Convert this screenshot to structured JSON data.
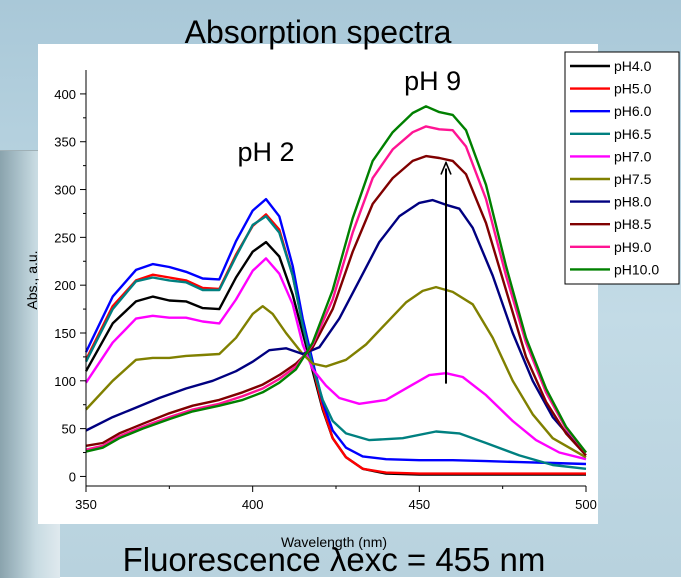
{
  "chart_data": {
    "type": "line",
    "title": "Absorption spectra",
    "xlabel": "Wavelength (nm)",
    "ylabel": "Abs., a.u.",
    "xlim": [
      350,
      500
    ],
    "ylim": [
      -10,
      425
    ],
    "xticks": [
      "350",
      "400",
      "450",
      "500"
    ],
    "yticks": [
      "0",
      "50",
      "100",
      "150",
      "200",
      "250",
      "300",
      "350",
      "400"
    ],
    "annotations": [
      {
        "text": "pH 2",
        "at": [
          404,
          330
        ]
      },
      {
        "text": "pH 9",
        "at": [
          454,
          404
        ]
      }
    ],
    "arrow": {
      "from": [
        458,
        97
      ],
      "to": [
        458,
        322
      ]
    },
    "footer": "Fluorescence λexc = 455 nm",
    "legend_position": "top-right",
    "series": [
      {
        "name": "pH4.0",
        "color": "#000000",
        "points": [
          [
            350,
            110
          ],
          [
            358,
            160
          ],
          [
            365,
            183
          ],
          [
            370,
            188
          ],
          [
            375,
            184
          ],
          [
            380,
            183
          ],
          [
            385,
            176
          ],
          [
            390,
            175
          ],
          [
            395,
            208
          ],
          [
            400,
            235
          ],
          [
            404,
            245
          ],
          [
            408,
            230
          ],
          [
            412,
            190
          ],
          [
            415,
            150
          ],
          [
            418,
            110
          ],
          [
            421,
            70
          ],
          [
            424,
            40
          ],
          [
            428,
            20
          ],
          [
            433,
            8
          ],
          [
            440,
            3
          ],
          [
            450,
            2
          ],
          [
            460,
            2
          ],
          [
            470,
            2
          ],
          [
            480,
            2
          ],
          [
            490,
            2
          ],
          [
            500,
            2
          ]
        ]
      },
      {
        "name": "pH5.0",
        "color": "#ff0000",
        "points": [
          [
            350,
            122
          ],
          [
            358,
            178
          ],
          [
            365,
            205
          ],
          [
            370,
            211
          ],
          [
            375,
            208
          ],
          [
            380,
            205
          ],
          [
            385,
            197
          ],
          [
            390,
            196
          ],
          [
            395,
            232
          ],
          [
            400,
            262
          ],
          [
            404,
            274
          ],
          [
            408,
            258
          ],
          [
            412,
            210
          ],
          [
            415,
            160
          ],
          [
            418,
            115
          ],
          [
            421,
            72
          ],
          [
            424,
            40
          ],
          [
            428,
            20
          ],
          [
            433,
            8
          ],
          [
            440,
            4
          ],
          [
            450,
            3
          ],
          [
            460,
            3
          ],
          [
            470,
            3
          ],
          [
            480,
            3
          ],
          [
            490,
            3
          ],
          [
            500,
            3
          ]
        ]
      },
      {
        "name": "pH6.0",
        "color": "#0000ff",
        "points": [
          [
            350,
            130
          ],
          [
            358,
            188
          ],
          [
            365,
            216
          ],
          [
            370,
            222
          ],
          [
            375,
            219
          ],
          [
            380,
            214
          ],
          [
            385,
            207
          ],
          [
            390,
            206
          ],
          [
            395,
            246
          ],
          [
            400,
            278
          ],
          [
            404,
            290
          ],
          [
            408,
            272
          ],
          [
            412,
            220
          ],
          [
            415,
            165
          ],
          [
            418,
            120
          ],
          [
            421,
            78
          ],
          [
            424,
            48
          ],
          [
            428,
            30
          ],
          [
            433,
            21
          ],
          [
            440,
            18
          ],
          [
            450,
            17
          ],
          [
            460,
            17
          ],
          [
            470,
            16
          ],
          [
            480,
            15
          ],
          [
            490,
            14
          ],
          [
            500,
            13
          ]
        ]
      },
      {
        "name": "pH6.5",
        "color": "#008080",
        "points": [
          [
            350,
            120
          ],
          [
            358,
            175
          ],
          [
            365,
            204
          ],
          [
            370,
            208
          ],
          [
            375,
            205
          ],
          [
            380,
            203
          ],
          [
            385,
            195
          ],
          [
            390,
            195
          ],
          [
            395,
            230
          ],
          [
            400,
            263
          ],
          [
            404,
            272
          ],
          [
            408,
            255
          ],
          [
            412,
            210
          ],
          [
            415,
            158
          ],
          [
            418,
            115
          ],
          [
            421,
            80
          ],
          [
            424,
            58
          ],
          [
            428,
            45
          ],
          [
            435,
            38
          ],
          [
            445,
            40
          ],
          [
            455,
            47
          ],
          [
            462,
            45
          ],
          [
            470,
            35
          ],
          [
            480,
            22
          ],
          [
            490,
            12
          ],
          [
            500,
            8
          ]
        ]
      },
      {
        "name": "pH7.0",
        "color": "#ff00ff",
        "points": [
          [
            350,
            98
          ],
          [
            358,
            140
          ],
          [
            365,
            165
          ],
          [
            370,
            168
          ],
          [
            375,
            166
          ],
          [
            380,
            166
          ],
          [
            385,
            162
          ],
          [
            390,
            160
          ],
          [
            395,
            185
          ],
          [
            400,
            215
          ],
          [
            404,
            228
          ],
          [
            408,
            212
          ],
          [
            412,
            180
          ],
          [
            415,
            138
          ],
          [
            418,
            112
          ],
          [
            422,
            95
          ],
          [
            426,
            82
          ],
          [
            432,
            76
          ],
          [
            440,
            80
          ],
          [
            448,
            96
          ],
          [
            453,
            106
          ],
          [
            458,
            108
          ],
          [
            463,
            104
          ],
          [
            470,
            85
          ],
          [
            478,
            58
          ],
          [
            485,
            38
          ],
          [
            492,
            25
          ],
          [
            500,
            18
          ]
        ]
      },
      {
        "name": "pH7.5",
        "color": "#808000",
        "points": [
          [
            350,
            70
          ],
          [
            358,
            100
          ],
          [
            365,
            122
          ],
          [
            370,
            124
          ],
          [
            375,
            124
          ],
          [
            380,
            126
          ],
          [
            385,
            127
          ],
          [
            390,
            128
          ],
          [
            395,
            145
          ],
          [
            400,
            170
          ],
          [
            403,
            178
          ],
          [
            406,
            170
          ],
          [
            410,
            150
          ],
          [
            415,
            128
          ],
          [
            418,
            118
          ],
          [
            422,
            115
          ],
          [
            428,
            122
          ],
          [
            434,
            138
          ],
          [
            440,
            160
          ],
          [
            446,
            182
          ],
          [
            451,
            194
          ],
          [
            455,
            198
          ],
          [
            460,
            193
          ],
          [
            466,
            180
          ],
          [
            472,
            145
          ],
          [
            478,
            100
          ],
          [
            484,
            65
          ],
          [
            490,
            40
          ],
          [
            500,
            20
          ]
        ]
      },
      {
        "name": "pH8.0",
        "color": "#000080",
        "points": [
          [
            350,
            48
          ],
          [
            358,
            62
          ],
          [
            365,
            72
          ],
          [
            372,
            82
          ],
          [
            380,
            92
          ],
          [
            388,
            100
          ],
          [
            395,
            110
          ],
          [
            400,
            120
          ],
          [
            405,
            132
          ],
          [
            410,
            134
          ],
          [
            415,
            128
          ],
          [
            420,
            135
          ],
          [
            426,
            165
          ],
          [
            432,
            205
          ],
          [
            438,
            245
          ],
          [
            444,
            272
          ],
          [
            450,
            286
          ],
          [
            454,
            289
          ],
          [
            458,
            284
          ],
          [
            462,
            280
          ],
          [
            466,
            260
          ],
          [
            472,
            210
          ],
          [
            478,
            150
          ],
          [
            484,
            100
          ],
          [
            490,
            62
          ],
          [
            496,
            38
          ],
          [
            500,
            25
          ]
        ]
      },
      {
        "name": "pH8.5",
        "color": "#800000",
        "points": [
          [
            350,
            32
          ],
          [
            355,
            35
          ],
          [
            360,
            45
          ],
          [
            367,
            55
          ],
          [
            375,
            66
          ],
          [
            382,
            74
          ],
          [
            390,
            80
          ],
          [
            397,
            88
          ],
          [
            403,
            96
          ],
          [
            408,
            106
          ],
          [
            413,
            118
          ],
          [
            418,
            135
          ],
          [
            424,
            175
          ],
          [
            430,
            235
          ],
          [
            436,
            285
          ],
          [
            442,
            312
          ],
          [
            448,
            330
          ],
          [
            452,
            335
          ],
          [
            456,
            333
          ],
          [
            460,
            330
          ],
          [
            464,
            316
          ],
          [
            470,
            265
          ],
          [
            476,
            195
          ],
          [
            482,
            125
          ],
          [
            488,
            78
          ],
          [
            494,
            45
          ],
          [
            500,
            22
          ]
        ]
      },
      {
        "name": "pH9.0",
        "color": "#ff1493",
        "points": [
          [
            350,
            28
          ],
          [
            355,
            32
          ],
          [
            360,
            42
          ],
          [
            367,
            52
          ],
          [
            375,
            62
          ],
          [
            382,
            70
          ],
          [
            390,
            76
          ],
          [
            397,
            84
          ],
          [
            403,
            92
          ],
          [
            408,
            102
          ],
          [
            413,
            115
          ],
          [
            418,
            138
          ],
          [
            424,
            185
          ],
          [
            430,
            255
          ],
          [
            436,
            312
          ],
          [
            442,
            342
          ],
          [
            448,
            360
          ],
          [
            452,
            366
          ],
          [
            456,
            363
          ],
          [
            460,
            362
          ],
          [
            464,
            345
          ],
          [
            470,
            290
          ],
          [
            476,
            210
          ],
          [
            482,
            140
          ],
          [
            488,
            88
          ],
          [
            494,
            50
          ],
          [
            500,
            25
          ]
        ]
      },
      {
        "name": "pH10.0",
        "color": "#008000",
        "points": [
          [
            350,
            26
          ],
          [
            355,
            30
          ],
          [
            360,
            40
          ],
          [
            367,
            50
          ],
          [
            375,
            60
          ],
          [
            382,
            68
          ],
          [
            390,
            74
          ],
          [
            397,
            80
          ],
          [
            403,
            88
          ],
          [
            408,
            98
          ],
          [
            413,
            112
          ],
          [
            418,
            140
          ],
          [
            424,
            195
          ],
          [
            430,
            270
          ],
          [
            436,
            330
          ],
          [
            442,
            360
          ],
          [
            448,
            380
          ],
          [
            452,
            387
          ],
          [
            456,
            381
          ],
          [
            460,
            378
          ],
          [
            464,
            362
          ],
          [
            470,
            305
          ],
          [
            476,
            220
          ],
          [
            482,
            145
          ],
          [
            488,
            92
          ],
          [
            494,
            52
          ],
          [
            500,
            25
          ]
        ]
      }
    ]
  }
}
